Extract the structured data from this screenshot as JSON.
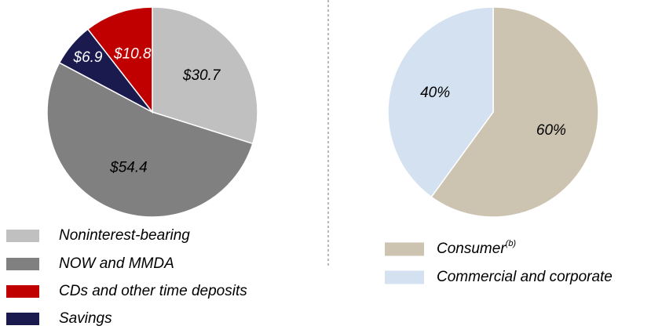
{
  "chart_data": [
    {
      "type": "pie",
      "categories": [
        "Noninterest-bearing",
        "NOW and MMDA",
        "Savings",
        "CDs and other time deposits"
      ],
      "values": [
        30.7,
        54.4,
        6.9,
        10.8
      ],
      "value_labels": [
        "$30.7",
        "$54.4",
        "$6.9",
        "$10.8"
      ],
      "colors": [
        "#c0c0c0",
        "#808080",
        "#1b1a4e",
        "#c00000"
      ],
      "label_colors": [
        "#000000",
        "#000000",
        "#ffffff",
        "#ffffff"
      ]
    },
    {
      "type": "pie",
      "categories": [
        "Consumer",
        "Commercial and corporate"
      ],
      "legend_notes": [
        "(b)",
        null
      ],
      "values": [
        60,
        40
      ],
      "value_labels": [
        "60%",
        "40%"
      ],
      "colors": [
        "#cdc3b1",
        "#d3e1f0"
      ],
      "label_colors": [
        "#000000",
        "#000000"
      ]
    }
  ]
}
